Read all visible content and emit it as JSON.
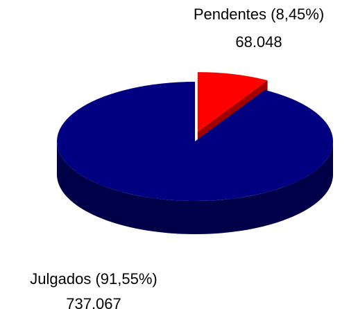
{
  "chart_data": {
    "type": "pie3d",
    "categories": [
      "Pendentes (8,45%)",
      "Julgados (91,55%)"
    ],
    "values": [
      68048,
      737067
    ],
    "value_labels": [
      "68.048",
      "737.067"
    ],
    "colors": [
      "#ff0000",
      "#000080"
    ],
    "side_colors": [
      "#a00000",
      "#000048"
    ],
    "explode": [
      true,
      false
    ]
  }
}
